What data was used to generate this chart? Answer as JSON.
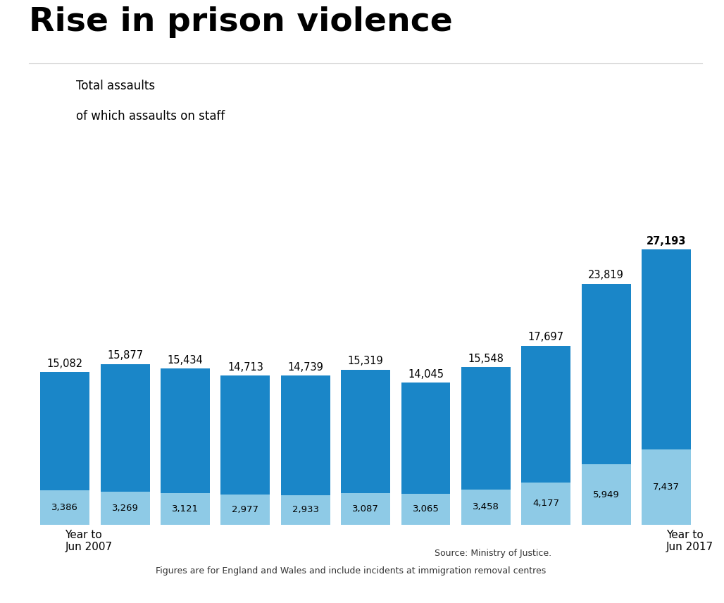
{
  "title": "Rise in prison violence",
  "categories": [
    "Year to\nJun 2007",
    "",
    "",
    "",
    "",
    "",
    "",
    "",
    "",
    "",
    "Year to\nJun 2017"
  ],
  "total_assaults": [
    15082,
    15877,
    15434,
    14713,
    14739,
    15319,
    14045,
    15548,
    17697,
    23819,
    27193
  ],
  "staff_assaults": [
    3386,
    3269,
    3121,
    2977,
    2933,
    3087,
    3065,
    3458,
    4177,
    5949,
    7437
  ],
  "total_labels": [
    "15,082",
    "15,877",
    "15,434",
    "14,713",
    "14,739",
    "15,319",
    "14,045",
    "15,548",
    "17,697",
    "23,819",
    "27,193"
  ],
  "staff_labels": [
    "3,386",
    "3,269",
    "3,121",
    "2,977",
    "2,933",
    "3,087",
    "3,065",
    "3,458",
    "4,177",
    "5,949",
    "7,437"
  ],
  "bar_color_dark": "#1a86c8",
  "bar_color_light": "#8ecae6",
  "background_color": "#ffffff",
  "title_fontsize": 34,
  "legend_label_total": "Total assaults",
  "legend_label_staff": "of which assaults on staff",
  "source_line1": "Source: Ministry of Justice.",
  "source_line2": "Figures are for England and Wales and include incidents at immigration removal centres",
  "ylim": [
    0,
    31000
  ],
  "bar_width": 0.82
}
